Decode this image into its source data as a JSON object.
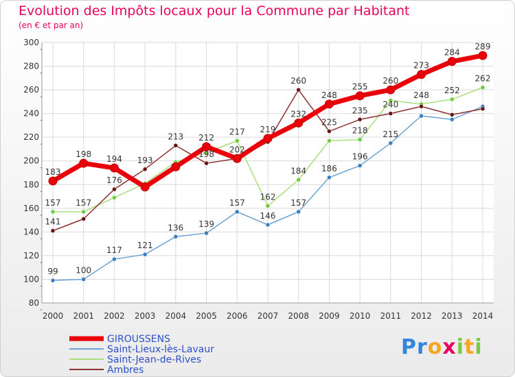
{
  "title": "Evolution des Impôts locaux pour la Commune par Habitant",
  "subtitle": "(en € et par an)",
  "brand": {
    "text": "Proxiti",
    "letters": [
      {
        "ch": "P",
        "color": "#2e86de"
      },
      {
        "ch": "r",
        "color": "#2e86de"
      },
      {
        "ch": "o",
        "color": "#f5a623"
      },
      {
        "ch": "x",
        "color": "#e8005a"
      },
      {
        "ch": "i",
        "color": "#7ac943"
      },
      {
        "ch": "t",
        "color": "#f5a623"
      },
      {
        "ch": "i",
        "color": "#7ac943"
      }
    ]
  },
  "chart_data": {
    "type": "line",
    "title": "Evolution des Impôts locaux pour la Commune par Habitant",
    "subtitle": "(en € et par an)",
    "xlabel": "",
    "ylabel": "",
    "ylim": [
      80,
      300
    ],
    "yticks": [
      80,
      100,
      120,
      140,
      160,
      180,
      200,
      220,
      240,
      260,
      280,
      300
    ],
    "categories": [
      "2000",
      "2001",
      "2002",
      "2003",
      "2004",
      "2005",
      "2006",
      "2007",
      "2008",
      "2009",
      "2010",
      "2011",
      "2012",
      "2013",
      "2014"
    ],
    "grid": true,
    "legend_position": "bottom-left",
    "series": [
      {
        "name": "GIROUSSENS",
        "color": "#e8000b",
        "emphasis": true,
        "values": [
          183,
          198,
          194,
          178,
          195,
          212,
          202,
          219,
          232,
          248,
          255,
          260,
          273,
          284,
          289
        ],
        "labels": [
          "183",
          "198",
          "194",
          "",
          "",
          "212",
          "202",
          "219",
          "232",
          "248",
          "255",
          "260",
          "273",
          "284",
          "289"
        ]
      },
      {
        "name": "Saint-Lieux-lès-Lavaur",
        "color": "#6da3d3",
        "marker": "#3a7ec0",
        "values": [
          99,
          100,
          117,
          121,
          136,
          139,
          157,
          146,
          157,
          186,
          196,
          215,
          238,
          235,
          246
        ],
        "labels": [
          "99",
          "100",
          "117",
          "121",
          "136",
          "139",
          "157",
          "146",
          "157",
          "186",
          "196",
          "215",
          "",
          "",
          ""
        ]
      },
      {
        "name": "Saint-Jean-de-Rives",
        "color": "#a9df7b",
        "marker": "#6ccc3a",
        "values": [
          157,
          157,
          169,
          181,
          199,
          207,
          217,
          162,
          184,
          217,
          218,
          251,
          248,
          252,
          262
        ],
        "labels": [
          "157",
          "157",
          "",
          "",
          "",
          "",
          "217",
          "162",
          "184",
          "",
          "218",
          "",
          "248",
          "252",
          "262"
        ]
      },
      {
        "name": "Ambres",
        "color": "#8b2f2f",
        "marker": "#6b1212",
        "values": [
          141,
          151,
          176,
          193,
          213,
          198,
          202,
          216,
          260,
          225,
          235,
          240,
          246,
          239,
          244
        ],
        "labels": [
          "141",
          "",
          "176",
          "193",
          "213",
          "198",
          "",
          "",
          "260",
          "225",
          "235",
          "240",
          "",
          "",
          ""
        ]
      }
    ]
  }
}
